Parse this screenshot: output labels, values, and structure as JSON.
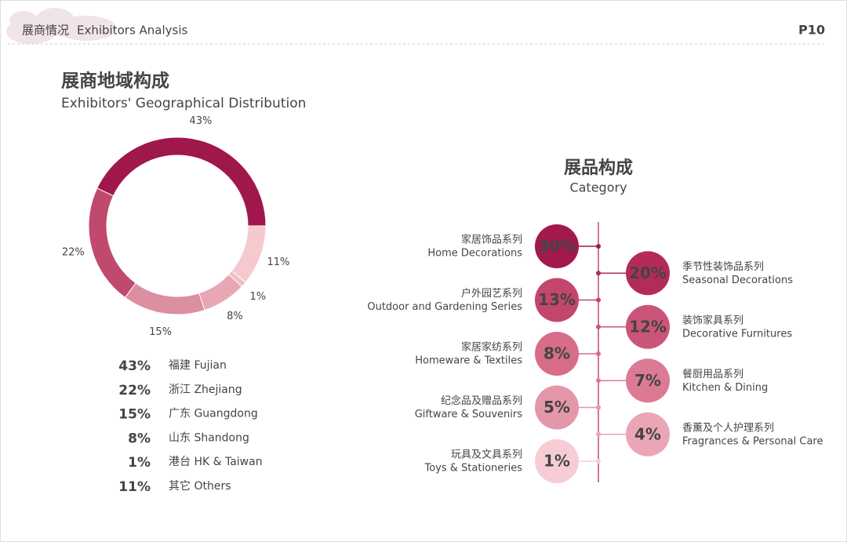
{
  "header": {
    "title_cn": "展商情况",
    "title_en": "Exhibitors Analysis",
    "page": "P10"
  },
  "chart_data": [
    {
      "type": "pie",
      "title": "展商地域构成",
      "subtitle": "Exhibitors' Geographical Distribution",
      "categories": [
        "福建 Fujian",
        "浙江 Zhejiang",
        "广东 Guangdong",
        "山东 Shandong",
        "港台 HK & Taiwan",
        "其它 Others"
      ],
      "values": [
        43,
        22,
        15,
        8,
        1,
        11
      ],
      "value_labels": [
        "43%",
        "22%",
        "15%",
        "8%",
        "1%",
        "11%"
      ],
      "colors": [
        "#a0174b",
        "#c04a6d",
        "#dc8fa0",
        "#e8a7b3",
        "#f0bcc5",
        "#f6c9cf"
      ]
    },
    {
      "type": "dot",
      "title": "展品构成",
      "subtitle": "Category",
      "categories_cn": [
        "家居饰品系列",
        "季节性装饰品系列",
        "户外园艺系列",
        "装饰家具系列",
        "家居家纺系列",
        "餐厨用品系列",
        "纪念品及赠品系列",
        "香薰及个人护理系列",
        "玩具及文具系列"
      ],
      "categories": [
        "Home Decorations",
        "Seasonal Decorations",
        "Outdoor and Gardening Series",
        "Decorative Furnitures",
        "Homeware & Textiles",
        "Kitchen & Dining",
        "Giftware & Souvenirs",
        "Fragrances & Personal Care",
        "Toys & Stationeries"
      ],
      "values": [
        30,
        20,
        13,
        12,
        8,
        7,
        5,
        4,
        1
      ],
      "value_labels": [
        "30%",
        "20%",
        "13%",
        "12%",
        "8%",
        "7%",
        "5%",
        "4%",
        "1%"
      ],
      "colors": [
        "#a3194d",
        "#b42b5a",
        "#c4466d",
        "#cb5578",
        "#d76d89",
        "#dc7a93",
        "#e597aa",
        "#eba6b6",
        "#f6cdd5"
      ]
    }
  ]
}
